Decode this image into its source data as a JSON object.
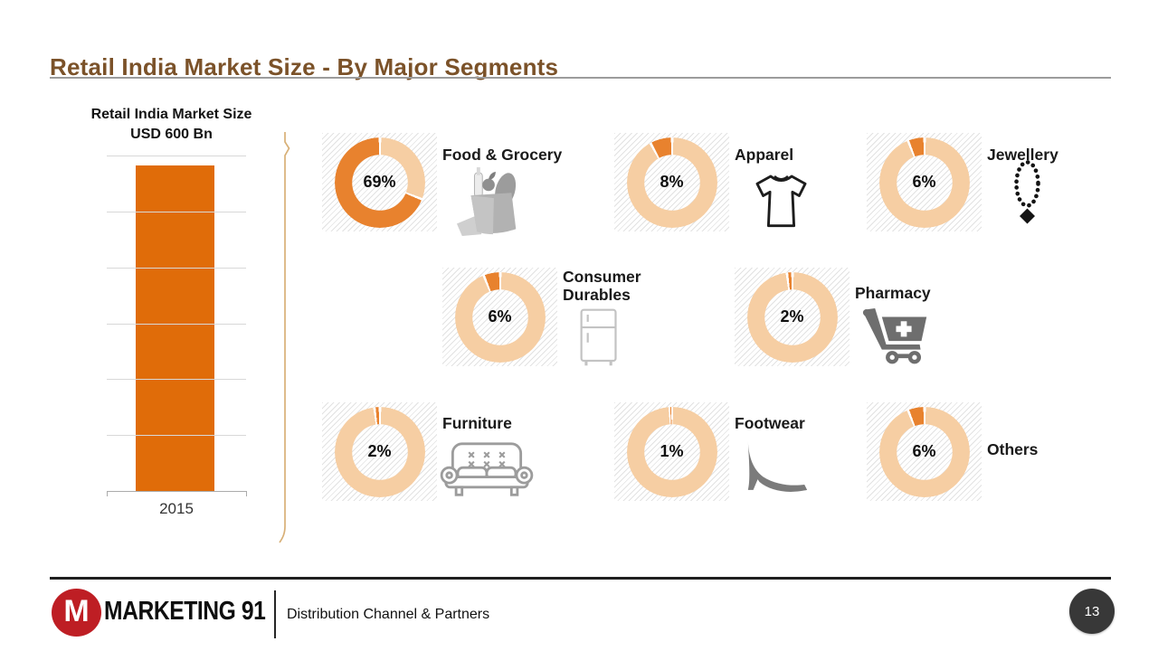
{
  "slide": {
    "title": "Retail India Market Size - By Major Segments"
  },
  "bar_chart": {
    "title_line1": "Retail India Market Size",
    "title_line2": "USD 600 Bn",
    "year_label": "2015"
  },
  "segments": [
    {
      "label": "Food & Grocery",
      "pct_label": "69%",
      "value": 69,
      "icon": "grocery-bag-icon"
    },
    {
      "label": "Apparel",
      "pct_label": "8%",
      "value": 8,
      "icon": "tshirt-icon"
    },
    {
      "label": "Jewellery",
      "pct_label": "6%",
      "value": 6,
      "icon": "necklace-icon"
    },
    {
      "label": "Consumer Durables",
      "pct_label": "6%",
      "value": 6,
      "icon": "fridge-icon"
    },
    {
      "label": "Pharmacy",
      "pct_label": "2%",
      "value": 2,
      "icon": "pharmacy-cart-icon"
    },
    {
      "label": "Furniture",
      "pct_label": "2%",
      "value": 2,
      "icon": "sofa-icon"
    },
    {
      "label": "Footwear",
      "pct_label": "1%",
      "value": 1,
      "icon": "high-heel-icon"
    },
    {
      "label": "Others",
      "pct_label": "6%",
      "value": 6,
      "icon": null
    }
  ],
  "footer": {
    "logo_letter": "M",
    "logo_text": "MARKETING 91",
    "subtitle": "Distribution Channel & Partners",
    "page_number": "13"
  },
  "colors": {
    "title_brown": "#7B5229",
    "bar_orange": "#E06C09",
    "donut_value": "#E8822E",
    "donut_rest": "#F6CEA3",
    "logo_red": "#BE1E24",
    "page_circle": "#383838"
  },
  "chart_data": [
    {
      "type": "bar",
      "title": "Retail India Market Size USD 600 Bn",
      "categories": [
        "2015"
      ],
      "values": [
        600
      ],
      "xlabel": "",
      "ylabel": "USD Bn",
      "ylim": [
        0,
        600
      ],
      "grid": true,
      "bar_color": "#E06C09",
      "legend_position": "none"
    },
    {
      "type": "pie",
      "title": "Retail India market share by major segments (%)",
      "labels": [
        "Food & Grocery",
        "Apparel",
        "Jewellery",
        "Consumer Durables",
        "Pharmacy",
        "Furniture",
        "Footwear",
        "Others"
      ],
      "values": [
        69,
        8,
        6,
        6,
        2,
        2,
        1,
        6
      ],
      "legend_position": "none",
      "colors": {
        "value_segment": "#E8822E",
        "remainder_segment": "#F6CEA3"
      }
    }
  ]
}
